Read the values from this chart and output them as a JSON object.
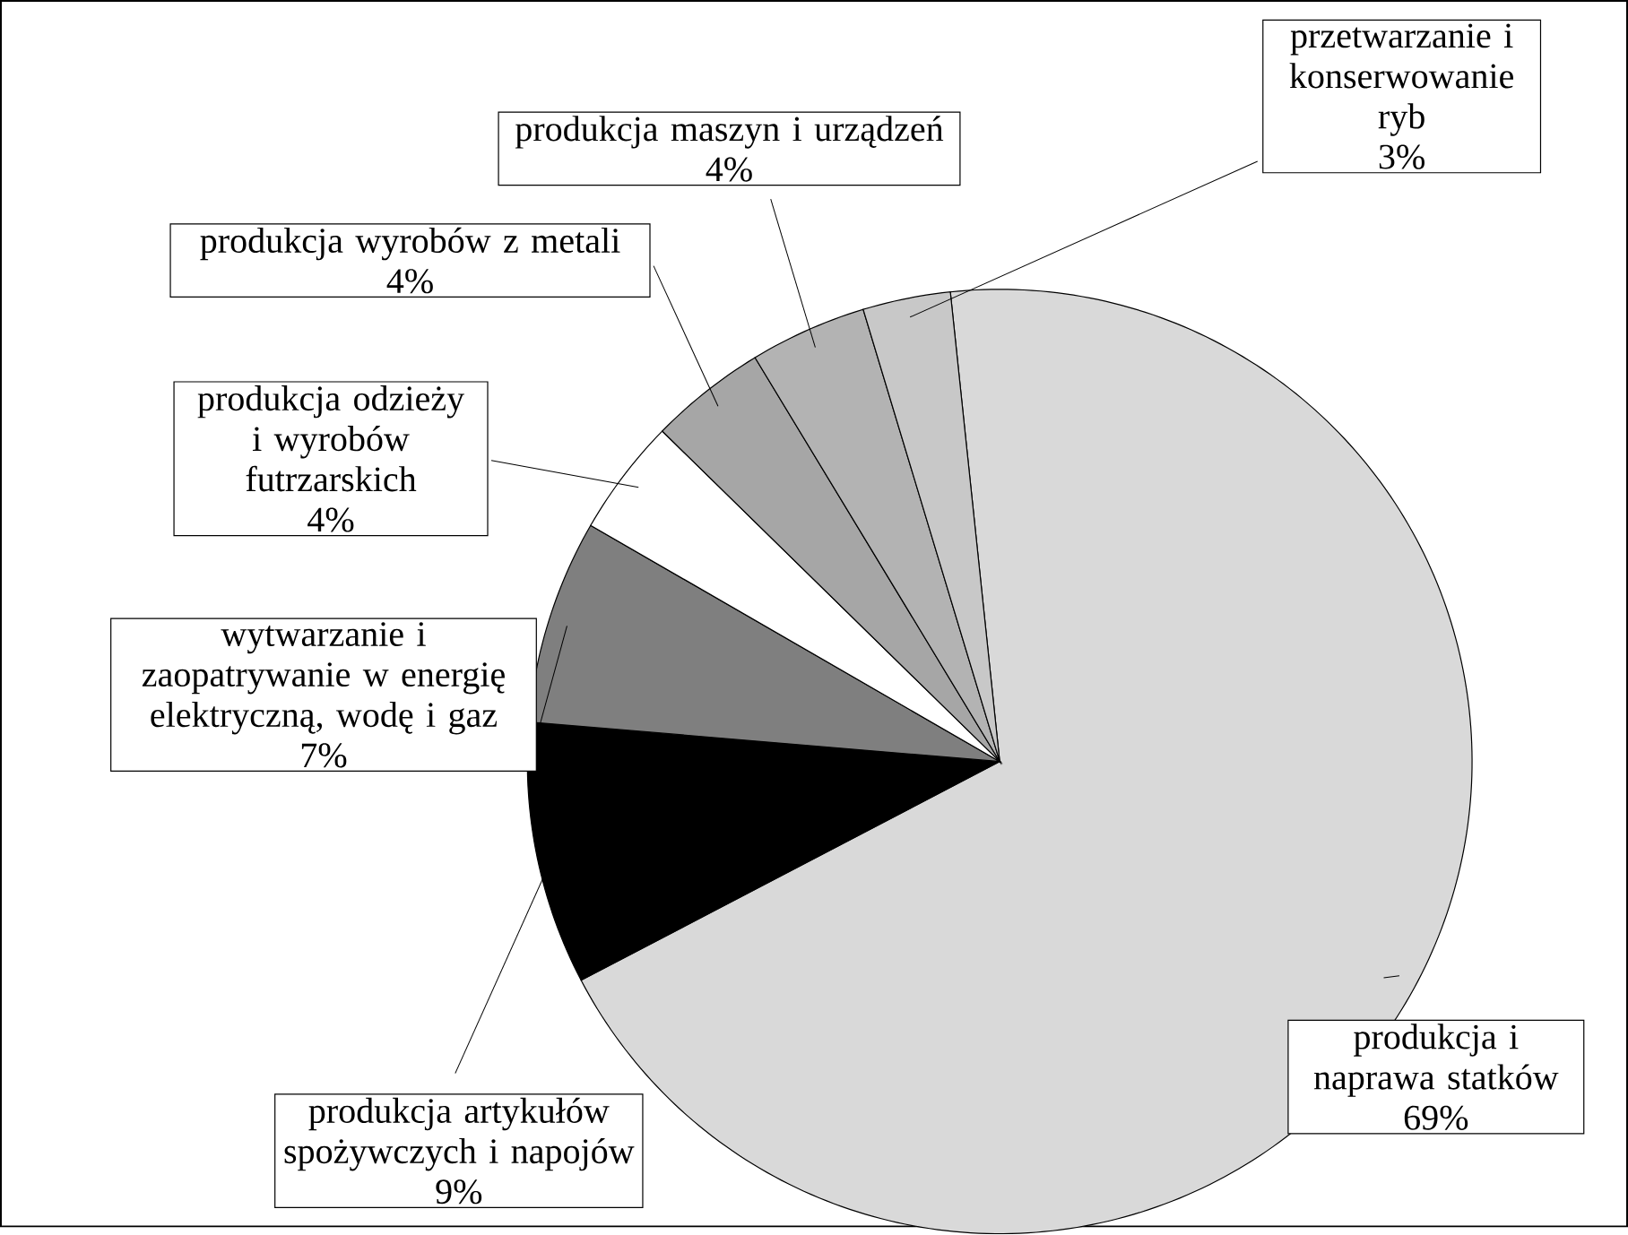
{
  "chart_data": {
    "type": "pie",
    "categories": [
      "produkcja i naprawa statków",
      "produkcja artykułów spożywczych i napojów",
      "wytwarzanie i zaopatrywanie w energię elektryczną, wodę i gaz",
      "produkcja odzieży i wyrobów futrzarskich",
      "produkcja wyrobów z metali",
      "produkcja maszyn i urządzeń",
      "przetwarzanie i konserwowanie ryb"
    ],
    "values": [
      69,
      9,
      7,
      4,
      4,
      4,
      3
    ],
    "value_labels": [
      "69%",
      "9%",
      "7%",
      "4%",
      "4%",
      "4%",
      "3%"
    ],
    "colors": [
      "#d9d9d9",
      "#000000",
      "#7f7f7f",
      "#ffffff",
      "#a6a6a6",
      "#b3b3b3",
      "#c8c8c8"
    ]
  }
}
